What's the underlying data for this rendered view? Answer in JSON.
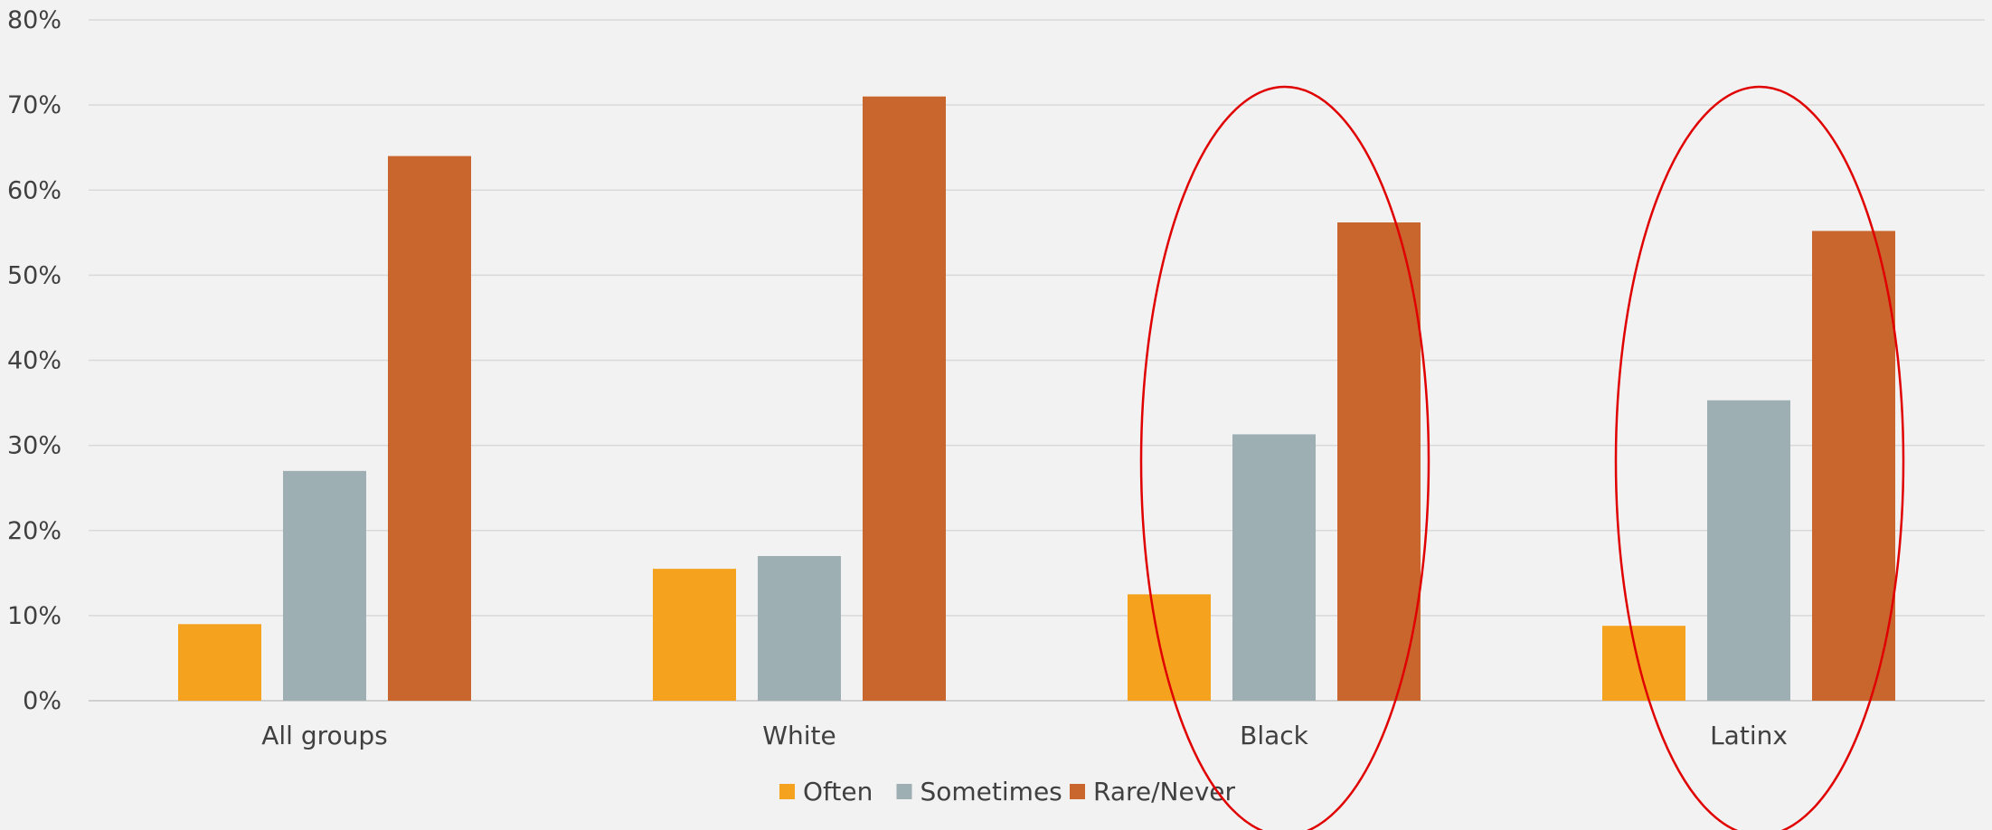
{
  "chart_data": {
    "type": "bar",
    "title": "",
    "xlabel": "",
    "ylabel": "",
    "ylim": [
      0,
      80
    ],
    "y_ticks": [
      "0%",
      "10%",
      "20%",
      "30%",
      "40%",
      "50%",
      "60%",
      "70%",
      "80%"
    ],
    "categories": [
      "All groups",
      "White",
      "Black",
      "Latinx"
    ],
    "series": [
      {
        "name": "Often",
        "values": [
          9,
          15.5,
          12.5,
          8.8
        ],
        "color": "#f5a31f"
      },
      {
        "name": "Sometimes",
        "values": [
          27,
          17,
          31.3,
          35.3
        ],
        "color": "#9eafb4"
      },
      {
        "name": "Rare/Never",
        "values": [
          64,
          71,
          56.2,
          55.2
        ],
        "color": "#c8662e"
      }
    ],
    "grid": true,
    "legend_position": "bottom",
    "highlighted_categories": [
      "Black",
      "Latinx"
    ],
    "highlight_color": "#e00000",
    "background_color": "#f2f2f2",
    "gridline_color": "#d9d9d9"
  }
}
